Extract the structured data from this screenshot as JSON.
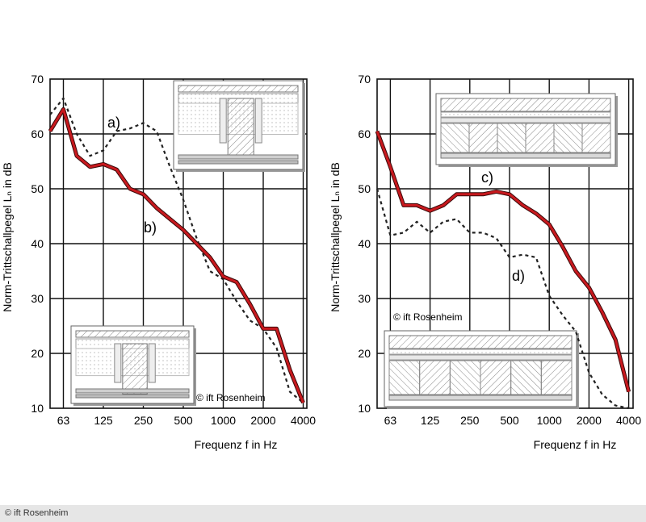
{
  "footer": {
    "copyright": "© ift Rosenheim"
  },
  "chart_data": [
    {
      "type": "line",
      "ylabel": "Norm-Trittschallpegel Lₙ in dB",
      "xlabel": "Frequenz f in Hz",
      "ylim": [
        10,
        70
      ],
      "yticks": [
        "10",
        "20",
        "30",
        "40",
        "50",
        "60",
        "70"
      ],
      "xticks": [
        "63",
        "125",
        "250",
        "500",
        "1000",
        "2000",
        "4000"
      ],
      "grid": true,
      "watermark": "© ift Rosenheim",
      "x": [
        "50",
        "63",
        "80",
        "100",
        "125",
        "160",
        "200",
        "250",
        "315",
        "400",
        "500",
        "630",
        "800",
        "1000",
        "1250",
        "1600",
        "2000",
        "2500",
        "3150",
        "4000"
      ],
      "series": [
        {
          "name": "a)",
          "style": "dashed",
          "color": "#222222",
          "values": [
            63.5,
            66.5,
            60,
            56,
            57,
            60.5,
            61,
            62,
            60.5,
            54,
            48,
            41,
            35,
            33.5,
            29.5,
            26,
            24.5,
            21,
            13,
            11
          ]
        },
        {
          "name": "b)",
          "style": "solid",
          "color": "#c8191e",
          "values": [
            60.5,
            64.5,
            56,
            54,
            54.5,
            53.5,
            50,
            49,
            46.5,
            44.5,
            42.5,
            40,
            37.5,
            34,
            33,
            29,
            24.5,
            24.5,
            17,
            11
          ]
        }
      ]
    },
    {
      "type": "line",
      "ylabel": "Norm-Trittschallpegel Lₙ in dB",
      "xlabel": "Frequenz f in Hz",
      "ylim": [
        10,
        70
      ],
      "yticks": [
        "10",
        "20",
        "30",
        "40",
        "50",
        "60",
        "70"
      ],
      "xticks": [
        "63",
        "125",
        "250",
        "500",
        "1000",
        "2000",
        "4000"
      ],
      "grid": true,
      "watermark": "© ift Rosenheim",
      "x": [
        "50",
        "63",
        "80",
        "100",
        "125",
        "160",
        "200",
        "250",
        "315",
        "400",
        "500",
        "630",
        "800",
        "1000",
        "1250",
        "1600",
        "2000",
        "2500",
        "3150",
        "4000"
      ],
      "series": [
        {
          "name": "c)",
          "style": "solid",
          "color": "#c8191e",
          "values": [
            60.5,
            54,
            47,
            47,
            46,
            47,
            49,
            49,
            49,
            49.5,
            49,
            47,
            45.5,
            43.5,
            39.5,
            35,
            32,
            27.5,
            22.5,
            13
          ]
        },
        {
          "name": "d)",
          "style": "dashed",
          "color": "#222222",
          "values": [
            50,
            41.5,
            42,
            44,
            42,
            44,
            44.5,
            42,
            42,
            41,
            37.5,
            38,
            37.5,
            30.5,
            27,
            24,
            16.5,
            12.5,
            10.5,
            10
          ]
        }
      ]
    }
  ]
}
